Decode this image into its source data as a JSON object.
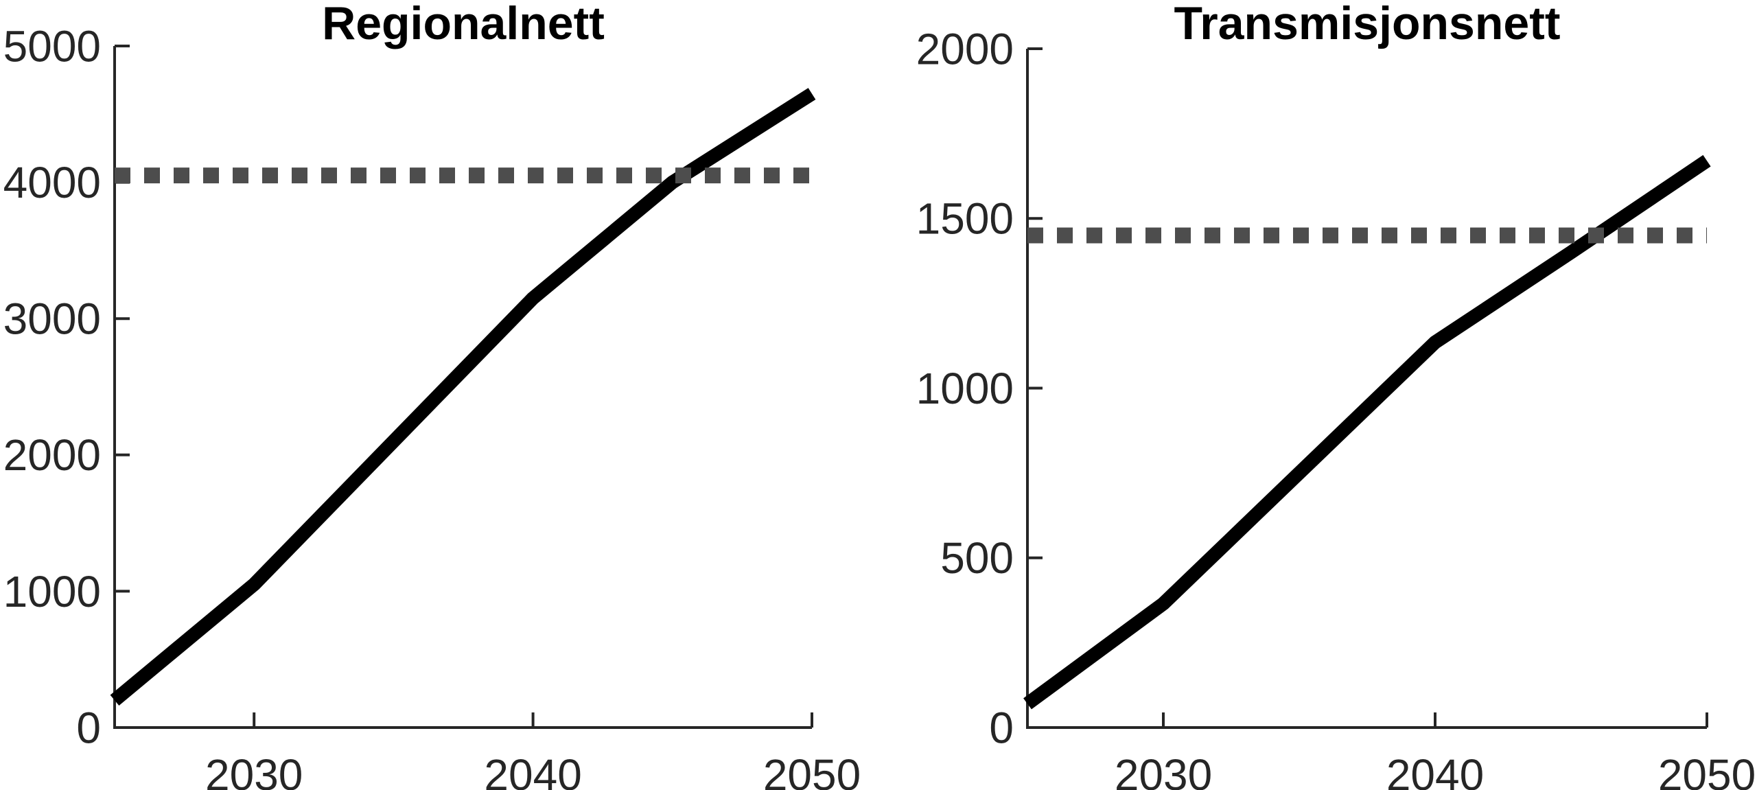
{
  "figure": {
    "background_color": "#ffffff",
    "panel_titles": [
      "Regionalnett",
      "Transmisjonsnett"
    ]
  },
  "chart_data": [
    {
      "type": "line",
      "title": "Regionalnett",
      "xlabel": "",
      "ylabel": "",
      "xlim": [
        2025,
        2050
      ],
      "ylim": [
        0,
        5000
      ],
      "xticks": [
        2030,
        2040,
        2050
      ],
      "yticks": [
        0,
        1000,
        2000,
        3000,
        4000,
        5000
      ],
      "grid": false,
      "legend": "none",
      "series": [
        {
          "name": "solid-line",
          "line_style": "solid",
          "color": "#000000",
          "x": [
            2025,
            2030,
            2040,
            2045,
            2050
          ],
          "values": [
            200,
            1050,
            3150,
            4000,
            4650
          ]
        },
        {
          "name": "dashed-horizontal-line",
          "line_style": "dashed",
          "color": "#4d4d4d",
          "constant_value": 4050
        }
      ]
    },
    {
      "type": "line",
      "title": "Transmisjonsnett",
      "xlabel": "",
      "ylabel": "",
      "xlim": [
        2025,
        2050
      ],
      "ylim": [
        0,
        2000
      ],
      "xticks": [
        2030,
        2040,
        2050
      ],
      "yticks": [
        0,
        500,
        1000,
        1500,
        2000
      ],
      "grid": false,
      "legend": "none",
      "series": [
        {
          "name": "solid-line",
          "line_style": "solid",
          "color": "#000000",
          "x": [
            2025,
            2030,
            2040,
            2045,
            2050
          ],
          "values": [
            70,
            365,
            1135,
            1400,
            1670
          ]
        },
        {
          "name": "dashed-horizontal-line",
          "line_style": "dashed",
          "color": "#4d4d4d",
          "constant_value": 1450
        }
      ]
    }
  ]
}
